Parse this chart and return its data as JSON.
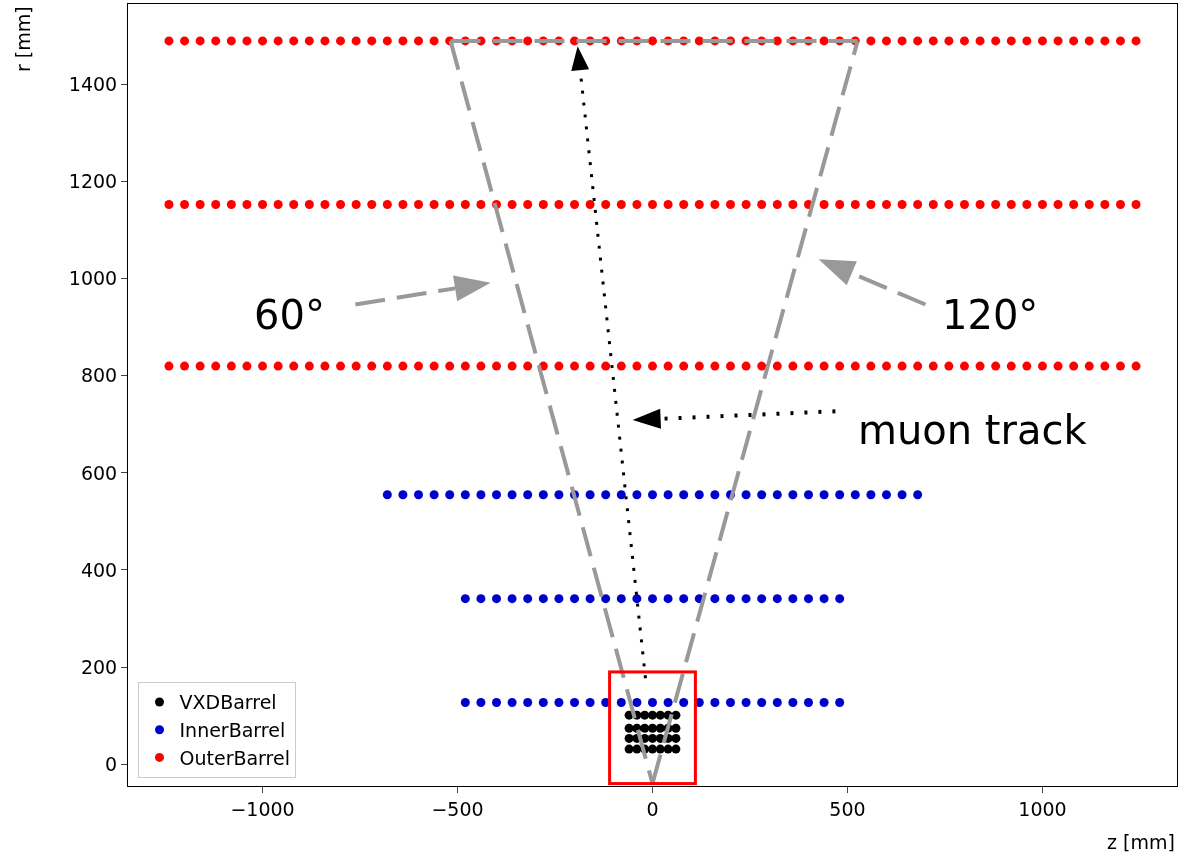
{
  "chart_data": {
    "type": "scatter",
    "xlabel": "z [mm]",
    "ylabel": "r [mm]",
    "marker": "circle",
    "grid": false,
    "legend": "bottom left",
    "xlim": [
      -1345,
      1345
    ],
    "ylim": [
      -45,
      1566
    ],
    "xticks": [
      {
        "value": -1000,
        "label": "−1000"
      },
      {
        "value": -500,
        "label": "−500"
      },
      0,
      500,
      1000
    ],
    "yticks": [
      0,
      200,
      400,
      600,
      800,
      1000,
      1200,
      1400
    ],
    "series": [
      {
        "name": "VXDBarrel",
        "color": "#000000",
        "x": [
          -60,
          -40,
          -20,
          0,
          20,
          40,
          60
        ],
        "values": [
          101,
          101,
          101,
          101,
          101,
          101,
          101
        ]
      },
      {
        "color": "#000000",
        "x": [
          -60,
          -40,
          -20,
          0,
          20,
          40,
          60
        ],
        "values": [
          74,
          74,
          74,
          74,
          74,
          74,
          74
        ]
      },
      {
        "color": "#000000",
        "x": [
          -60,
          -40,
          -20,
          0,
          20,
          40,
          60
        ],
        "values": [
          53,
          53,
          53,
          53,
          53,
          53,
          53
        ]
      },
      {
        "color": "#000000",
        "x": [
          -60,
          -40,
          -20,
          0,
          20,
          40,
          60
        ],
        "values": [
          31,
          31,
          31,
          31,
          31,
          31,
          31
        ]
      },
      {
        "name": "InnerBarrel",
        "color": "#0000cc",
        "x": [
          -480,
          -440,
          -400,
          -360,
          -320,
          -280,
          -240,
          -200,
          -160,
          -120,
          -80,
          -40,
          0,
          40,
          80,
          120,
          160,
          200,
          240,
          280,
          320,
          360,
          400,
          440,
          480
        ],
        "values": [
          127,
          127,
          127,
          127,
          127,
          127,
          127,
          127,
          127,
          127,
          127,
          127,
          127,
          127,
          127,
          127,
          127,
          127,
          127,
          127,
          127,
          127,
          127,
          127,
          127
        ]
      },
      {
        "color": "#0000cc",
        "x": [
          -480,
          -440,
          -400,
          -360,
          -320,
          -280,
          -240,
          -200,
          -160,
          -120,
          -80,
          -40,
          0,
          40,
          80,
          120,
          160,
          200,
          240,
          280,
          320,
          360,
          400,
          440,
          480
        ],
        "values": [
          341,
          341,
          341,
          341,
          341,
          341,
          341,
          341,
          341,
          341,
          341,
          341,
          341,
          341,
          341,
          341,
          341,
          341,
          341,
          341,
          341,
          341,
          341,
          341,
          341
        ]
      },
      {
        "color": "#0000cc",
        "x": [
          -680,
          -640,
          -600,
          -560,
          -520,
          -480,
          -440,
          -400,
          -360,
          -320,
          -280,
          -240,
          -200,
          -160,
          -120,
          -80,
          -40,
          0,
          40,
          80,
          120,
          160,
          200,
          240,
          280,
          320,
          360,
          400,
          440,
          480,
          520,
          560,
          600,
          640,
          680
        ],
        "values": [
          555,
          555,
          555,
          555,
          555,
          555,
          555,
          555,
          555,
          555,
          555,
          555,
          555,
          555,
          555,
          555,
          555,
          555,
          555,
          555,
          555,
          555,
          555,
          555,
          555,
          555,
          555,
          555,
          555,
          555,
          555,
          555,
          555,
          555,
          555
        ]
      },
      {
        "name": "OuterBarrel",
        "color": "#ff0000",
        "x": [
          -1240,
          -1200,
          -1160,
          -1120,
          -1080,
          -1040,
          -1000,
          -960,
          -920,
          -880,
          -840,
          -800,
          -760,
          -720,
          -680,
          -640,
          -600,
          -560,
          -520,
          -480,
          -440,
          -400,
          -360,
          -320,
          -280,
          -240,
          -200,
          -160,
          -120,
          -80,
          -40,
          0,
          40,
          80,
          120,
          160,
          200,
          240,
          280,
          320,
          360,
          400,
          440,
          480,
          520,
          560,
          600,
          640,
          680,
          720,
          760,
          800,
          840,
          880,
          920,
          960,
          1000,
          1040,
          1080,
          1120,
          1160,
          1200,
          1240
        ],
        "values": [
          820,
          820,
          820,
          820,
          820,
          820,
          820,
          820,
          820,
          820,
          820,
          820,
          820,
          820,
          820,
          820,
          820,
          820,
          820,
          820,
          820,
          820,
          820,
          820,
          820,
          820,
          820,
          820,
          820,
          820,
          820,
          820,
          820,
          820,
          820,
          820,
          820,
          820,
          820,
          820,
          820,
          820,
          820,
          820,
          820,
          820,
          820,
          820,
          820,
          820,
          820,
          820,
          820,
          820,
          820,
          820,
          820,
          820,
          820,
          820,
          820,
          820,
          820
        ]
      },
      {
        "color": "#ff0000",
        "x": [
          -1240,
          -1200,
          -1160,
          -1120,
          -1080,
          -1040,
          -1000,
          -960,
          -920,
          -880,
          -840,
          -800,
          -760,
          -720,
          -680,
          -640,
          -600,
          -560,
          -520,
          -480,
          -440,
          -400,
          -360,
          -320,
          -280,
          -240,
          -200,
          -160,
          -120,
          -80,
          -40,
          0,
          40,
          80,
          120,
          160,
          200,
          240,
          280,
          320,
          360,
          400,
          440,
          480,
          520,
          560,
          600,
          640,
          680,
          720,
          760,
          800,
          840,
          880,
          920,
          960,
          1000,
          1040,
          1080,
          1120,
          1160,
          1200,
          1240
        ],
        "values": [
          1153,
          1153,
          1153,
          1153,
          1153,
          1153,
          1153,
          1153,
          1153,
          1153,
          1153,
          1153,
          1153,
          1153,
          1153,
          1153,
          1153,
          1153,
          1153,
          1153,
          1153,
          1153,
          1153,
          1153,
          1153,
          1153,
          1153,
          1153,
          1153,
          1153,
          1153,
          1153,
          1153,
          1153,
          1153,
          1153,
          1153,
          1153,
          1153,
          1153,
          1153,
          1153,
          1153,
          1153,
          1153,
          1153,
          1153,
          1153,
          1153,
          1153,
          1153,
          1153,
          1153,
          1153,
          1153,
          1153,
          1153,
          1153,
          1153,
          1153,
          1153,
          1153,
          1153
        ]
      },
      {
        "color": "#ff0000",
        "x": [
          -1240,
          -1200,
          -1160,
          -1120,
          -1080,
          -1040,
          -1000,
          -960,
          -920,
          -880,
          -840,
          -800,
          -760,
          -720,
          -680,
          -640,
          -600,
          -560,
          -520,
          -480,
          -440,
          -400,
          -360,
          -320,
          -280,
          -240,
          -200,
          -160,
          -120,
          -80,
          -40,
          0,
          40,
          80,
          120,
          160,
          200,
          240,
          280,
          320,
          360,
          400,
          440,
          480,
          520,
          560,
          600,
          640,
          680,
          720,
          760,
          800,
          840,
          880,
          920,
          960,
          1000,
          1040,
          1080,
          1120,
          1160,
          1200,
          1240
        ],
        "values": [
          1490,
          1490,
          1490,
          1490,
          1490,
          1490,
          1490,
          1490,
          1490,
          1490,
          1490,
          1490,
          1490,
          1490,
          1490,
          1490,
          1490,
          1490,
          1490,
          1490,
          1490,
          1490,
          1490,
          1490,
          1490,
          1490,
          1490,
          1490,
          1490,
          1490,
          1490,
          1490,
          1490,
          1490,
          1490,
          1490,
          1490,
          1490,
          1490,
          1490,
          1490,
          1490,
          1490,
          1490,
          1490,
          1490,
          1490,
          1490,
          1490,
          1490,
          1490,
          1490,
          1490,
          1490,
          1490,
          1490,
          1490,
          1490,
          1490,
          1490,
          1490,
          1490,
          1490
        ]
      },
      {
        "type": "line",
        "line_style": "dashed",
        "marker": "none",
        "color": "#999999",
        "x": [
          -518,
          0
        ],
        "values": [
          1490,
          -40
        ]
      },
      {
        "type": "line",
        "line_style": "dashed",
        "marker": "none",
        "color": "#999999",
        "x": [
          0,
          526
        ],
        "values": [
          -40,
          1490
        ]
      },
      {
        "type": "line",
        "line_style": "dashed",
        "marker": "none",
        "color": "#999999",
        "x": [
          -518,
          526
        ],
        "values": [
          1490,
          1490
        ]
      }
    ],
    "annotations": [
      "60°",
      "120°",
      "muon track"
    ]
  }
}
